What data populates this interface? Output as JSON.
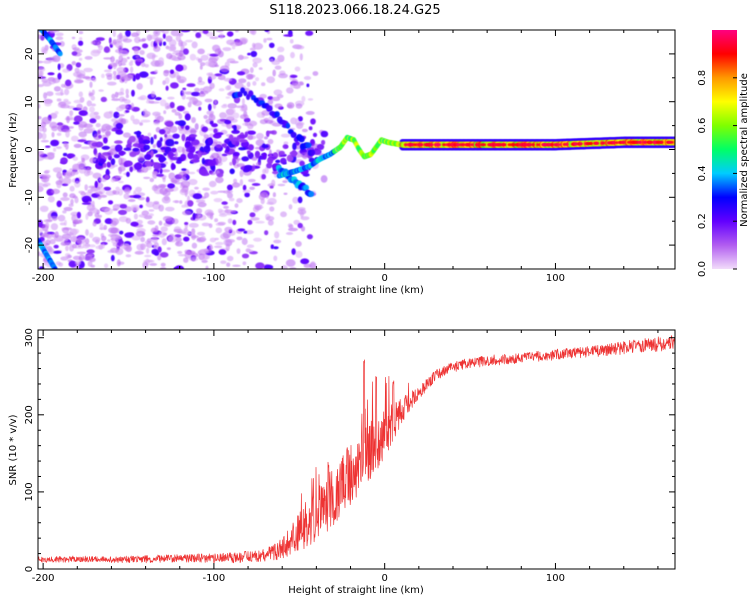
{
  "title": "S118.2023.066.18.24.G25",
  "colors": {
    "snr_line": "#ee3333",
    "axis": "#000000",
    "colorbar_stops": [
      "#f2dcfa",
      "#b15cf0",
      "#6200ff",
      "#0000ff",
      "#00ccff",
      "#00ff66",
      "#7fff00",
      "#ffff00",
      "#ff9900",
      "#ff0000",
      "#ff0080"
    ]
  },
  "chart_data": [
    {
      "type": "heatmap",
      "name": "spectrogram",
      "xlabel": "Height of straight line (km)",
      "ylabel": "Frequency (Hz)",
      "xlim": [
        -203,
        170
      ],
      "ylim": [
        -25,
        25
      ],
      "xticks": [
        -200,
        -100,
        0,
        100
      ],
      "yticks": [
        20,
        10,
        0,
        -10,
        -20
      ],
      "grid": false,
      "colorbar": {
        "label": "Normalized spectral amplitude",
        "range": [
          0.0,
          1.0
        ],
        "ticks": [
          "0.0",
          "0.2",
          "0.4",
          "0.6",
          "0.8"
        ],
        "tick_values": [
          0.0,
          0.2,
          0.4,
          0.6,
          0.8
        ]
      },
      "features": {
        "main_trace": [
          [
            -62,
            -5.5
          ],
          [
            -52,
            -4.5
          ],
          [
            -44,
            -3.5
          ],
          [
            -38,
            -2
          ],
          [
            -32,
            -1
          ],
          [
            -26,
            0.5
          ],
          [
            -22,
            2.5
          ],
          [
            -18,
            2
          ],
          [
            -15,
            0
          ],
          [
            -12,
            -1.5
          ],
          [
            -8,
            -1
          ],
          [
            -5,
            0.5
          ],
          [
            -2,
            2
          ],
          [
            2,
            1.5
          ],
          [
            10,
            1
          ],
          [
            30,
            1
          ],
          [
            60,
            1
          ],
          [
            100,
            1
          ],
          [
            140,
            1.5
          ],
          [
            170,
            1.5
          ]
        ],
        "upper_arm": [
          [
            -88,
            12
          ],
          [
            -80,
            11.5
          ],
          [
            -72,
            10
          ],
          [
            -66,
            8
          ],
          [
            -60,
            6
          ],
          [
            -55,
            4
          ],
          [
            -50,
            2
          ],
          [
            -46,
            1
          ],
          [
            -42,
            -1
          ]
        ],
        "lower_arm": [
          [
            -62,
            -4
          ],
          [
            -58,
            -5
          ],
          [
            -53,
            -6.5
          ],
          [
            -48,
            -8
          ],
          [
            -43,
            -9
          ]
        ],
        "diagonal_top_left": [
          [
            -203,
            26
          ],
          [
            -196,
            23
          ],
          [
            -190,
            20
          ]
        ],
        "diagonal_bottom_left": [
          [
            -203,
            -19
          ],
          [
            -198,
            -22
          ],
          [
            -193,
            -25
          ]
        ]
      }
    },
    {
      "type": "line",
      "name": "snr",
      "xlabel": "Height of straight line (km)",
      "ylabel": "SNR (10 * v/v)",
      "xlim": [
        -203,
        170
      ],
      "ylim": [
        0,
        310
      ],
      "xticks": [
        -200,
        -100,
        0,
        100
      ],
      "yticks": [
        300,
        200,
        100,
        0
      ],
      "grid": false,
      "series": [
        {
          "x": [
            -203,
            -180,
            -160,
            -140,
            -120,
            -100,
            -85,
            -70,
            -62,
            -55,
            -50,
            -45,
            -40,
            -35,
            -30,
            -25,
            -20,
            -15,
            -10,
            -5,
            0,
            5,
            10,
            15,
            20,
            25,
            30,
            40,
            50,
            60,
            70,
            80,
            90,
            100,
            110,
            120,
            130,
            140,
            150,
            160,
            170
          ],
          "y": [
            12,
            13,
            12,
            13,
            14,
            14,
            15,
            18,
            24,
            38,
            48,
            58,
            70,
            82,
            95,
            105,
            118,
            132,
            148,
            162,
            175,
            190,
            205,
            218,
            228,
            240,
            252,
            262,
            267,
            270,
            272,
            274,
            276,
            278,
            280,
            282,
            284,
            287,
            290,
            292,
            294
          ],
          "noise": [
            4,
            4,
            4,
            5,
            5,
            6,
            7,
            8,
            12,
            22,
            28,
            32,
            36,
            40,
            42,
            42,
            42,
            42,
            40,
            36,
            32,
            24,
            18,
            12,
            9,
            8,
            7,
            7,
            7,
            7,
            7,
            7,
            7,
            7,
            7,
            7,
            8,
            9,
            9,
            10,
            10
          ]
        }
      ],
      "peaks": [
        [
          -33,
          140
        ],
        [
          -22,
          160
        ],
        [
          -12,
          272
        ],
        [
          -5,
          250
        ],
        [
          5,
          245
        ],
        [
          12,
          228
        ]
      ]
    }
  ]
}
